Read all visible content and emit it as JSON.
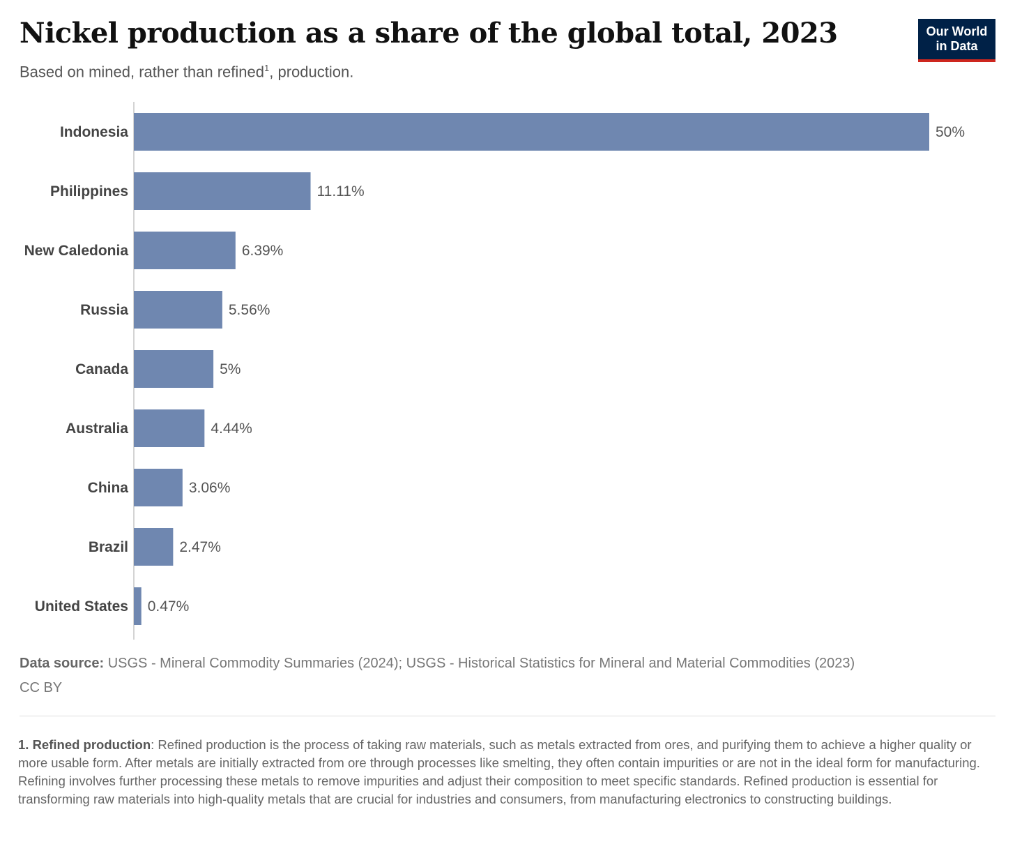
{
  "header": {
    "title": "Nickel production as a share of the global total, 2023",
    "subtitle_before": "Based on mined, rather than refined",
    "subtitle_sup": "1",
    "subtitle_after": ", production."
  },
  "logo": {
    "line1": "Our World",
    "line2": "in Data"
  },
  "chart_data": {
    "type": "bar",
    "orientation": "horizontal",
    "categories": [
      "Indonesia",
      "Philippines",
      "New Caledonia",
      "Russia",
      "Canada",
      "Australia",
      "China",
      "Brazil",
      "United States"
    ],
    "values": [
      50,
      11.11,
      6.39,
      5.56,
      5,
      4.44,
      3.06,
      2.47,
      0.47
    ],
    "value_labels": [
      "50%",
      "11.11%",
      "6.39%",
      "5.56%",
      "5%",
      "4.44%",
      "3.06%",
      "2.47%",
      "0.47%"
    ],
    "unit": "%",
    "xlim": [
      0,
      50
    ],
    "grid": false,
    "bar_color": "#6f87b0"
  },
  "footer": {
    "source_label": "Data source:",
    "source_text": " USGS - Mineral Commodity Summaries (2024); USGS - Historical Statistics for Mineral and Material Commodities (2023)",
    "license": "CC BY",
    "footnote_label": "1. Refined production",
    "footnote_text": ": Refined production is the process of taking raw materials, such as metals extracted from ores, and purifying them to achieve a higher quality or more usable form. After metals are initially extracted from ore through processes like smelting, they often contain impurities or are not in the ideal form for manufacturing. Refining involves further processing these metals to remove impurities and adjust their composition to meet specific standards. Refined production is essential for transforming raw materials into high-quality metals that are crucial for industries and consumers, from manufacturing electronics to constructing buildings."
  }
}
